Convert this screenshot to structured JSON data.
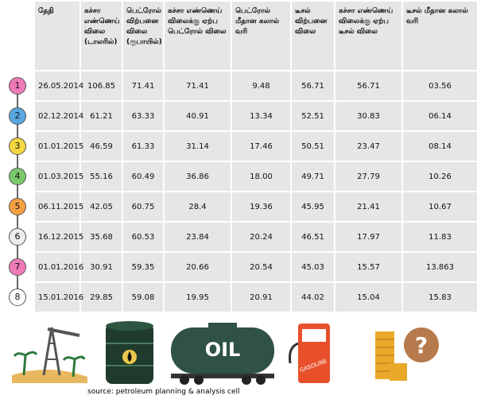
{
  "header": {
    "columns": [
      "தேதி",
      "கச்சா எண்ணெய் விலை (டாலரில்)",
      "பெட்ரோல் விற்பனை விலை (ரூபாயில்)",
      "கச்சா எண்ணெய் விலைக்கு ஏற்ப பெட்ரோல் விலை",
      "பெட்ரோல் மீதான கலால் வரி",
      "டீசல் விற்பனை விலை",
      "கச்சா எண்ணெய் விலைக்கு ஏற்ப டீசல் விலை",
      "டீசல் மீதான கலால் வரி"
    ]
  },
  "rows": [
    {
      "index": "1",
      "color": "#f07ab8",
      "cells": [
        "26.05.2014",
        "106.85",
        "71.41",
        "71.41",
        "9.48",
        "56.71",
        "56.71",
        "03.56"
      ]
    },
    {
      "index": "2",
      "color": "#5aa6e0",
      "cells": [
        "02.12.2014",
        "61.21",
        "63.33",
        "40.91",
        "13.34",
        "52.51",
        "30.83",
        "06.14"
      ]
    },
    {
      "index": "3",
      "color": "#f5d742",
      "cells": [
        "01.01.2015",
        "46.59",
        "61.33",
        "31.14",
        "17.46",
        "50.51",
        "23.47",
        "08.14"
      ]
    },
    {
      "index": "4",
      "color": "#7cc96b",
      "cells": [
        "01.03.2015",
        "55.16",
        "60.49",
        "36.86",
        "18.00",
        "49.71",
        "27.79",
        "10.26"
      ]
    },
    {
      "index": "5",
      "color": "#f5a142",
      "cells": [
        "06.11.2015",
        "42.05",
        "60.75",
        "28.4",
        "19.36",
        "45.95",
        "21.41",
        "10.67"
      ]
    },
    {
      "index": "6",
      "color": "#eeeeee",
      "cells": [
        "16.12.2015",
        "35.68",
        "60.53",
        "23.84",
        "20.24",
        "46.51",
        "17.97",
        "11.83"
      ]
    },
    {
      "index": "7",
      "color": "#f07ab8",
      "cells": [
        "01.01.2016",
        "30.91",
        "59.35",
        "20.66",
        "20.54",
        "45.03",
        "15.57",
        "13.863"
      ]
    },
    {
      "index": "8",
      "color": "#ffffff",
      "cells": [
        "15.01.2016",
        "29.85",
        "59.08",
        "19.95",
        "20.91",
        "44.02",
        "15.04",
        "15.83"
      ]
    }
  ],
  "icons": {
    "tanker": "OIL",
    "pump": "GASOLINE",
    "question": "?"
  },
  "source": "source: petroleum planning & analysis cell"
}
